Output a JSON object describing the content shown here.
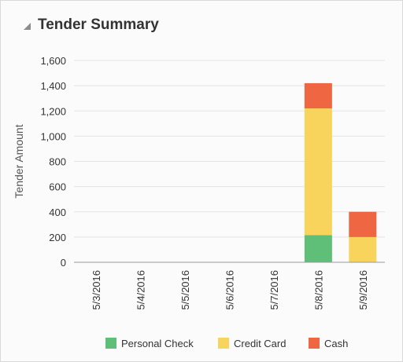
{
  "panel": {
    "title": "Tender Summary",
    "collapse_icon": "collapse-triangle-icon"
  },
  "chart_data": {
    "type": "bar",
    "stacked": true,
    "title": "",
    "xlabel": "",
    "ylabel": "Tender Amount",
    "ylim": [
      0,
      1600
    ],
    "yticks": [
      0,
      200,
      400,
      600,
      800,
      1000,
      1200,
      1400,
      1600
    ],
    "ytick_labels": [
      "0",
      "200",
      "400",
      "600",
      "800",
      "1,000",
      "1,200",
      "1,400",
      "1,600"
    ],
    "categories": [
      "5/3/2016",
      "5/4/2016",
      "5/5/2016",
      "5/6/2016",
      "5/7/2016",
      "5/8/2016",
      "5/9/2016"
    ],
    "series": [
      {
        "name": "Personal Check",
        "color": "#5fbe78",
        "values": [
          0,
          0,
          0,
          0,
          0,
          215,
          0
        ]
      },
      {
        "name": "Credit Card",
        "color": "#f9d45c",
        "values": [
          0,
          0,
          0,
          0,
          0,
          1005,
          200
        ]
      },
      {
        "name": "Cash",
        "color": "#ee6742",
        "values": [
          0,
          0,
          0,
          0,
          0,
          200,
          200
        ]
      }
    ],
    "grid": true,
    "legend_position": "bottom"
  }
}
